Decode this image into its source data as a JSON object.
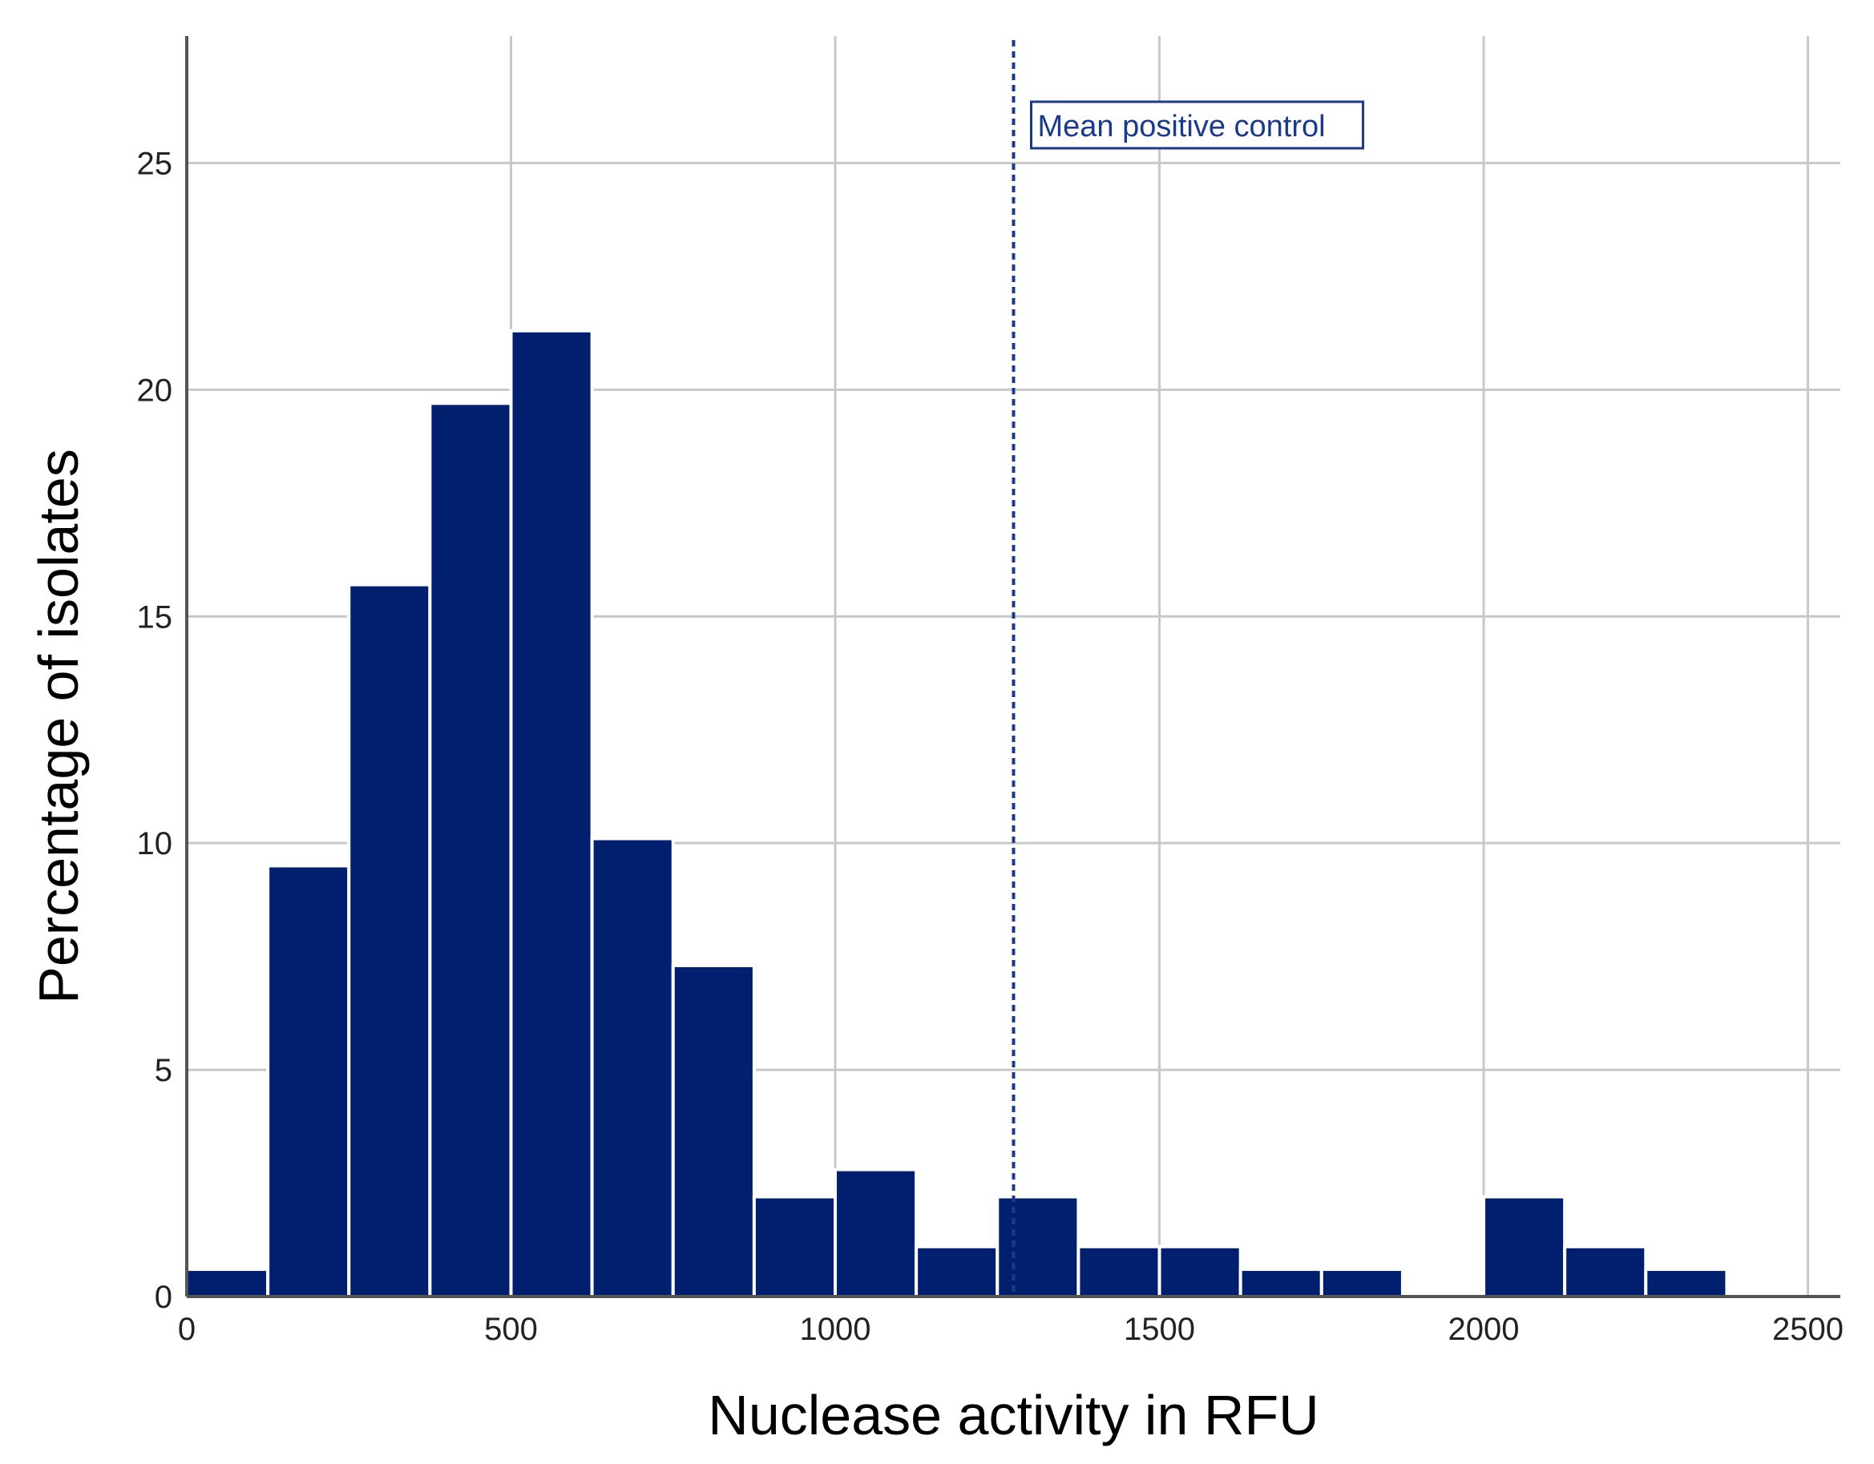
{
  "chart_data": {
    "type": "bar",
    "subtype": "histogram",
    "xlabel": "Nuclease activity in RFU",
    "ylabel": "Percentage of isolates",
    "xlim": [
      0,
      2550
    ],
    "ylim": [
      0,
      27.8
    ],
    "xticks": [
      0,
      500,
      1000,
      1500,
      2000,
      2500
    ],
    "yticks": [
      0,
      5,
      10,
      15,
      20,
      25
    ],
    "grid": true,
    "bin_width": 125,
    "bin_starts": [
      0,
      125,
      250,
      375,
      500,
      625,
      750,
      875,
      1000,
      1125,
      1250,
      1375,
      1500,
      1625,
      1750,
      1875,
      2000,
      2125,
      2250
    ],
    "values": [
      0.6,
      9.5,
      15.7,
      19.7,
      21.3,
      10.1,
      7.3,
      2.2,
      2.8,
      1.1,
      2.2,
      1.1,
      1.1,
      0.6,
      0.6,
      0,
      2.2,
      1.1,
      0.6
    ],
    "reference_line": {
      "x": 1275,
      "label": "Mean positive control",
      "style": "dashed"
    },
    "colors": {
      "bar": "#001f6e",
      "bar_edge": "#ffffff",
      "grid": "#c8c8c8",
      "reference": "#1a3a8a"
    }
  }
}
